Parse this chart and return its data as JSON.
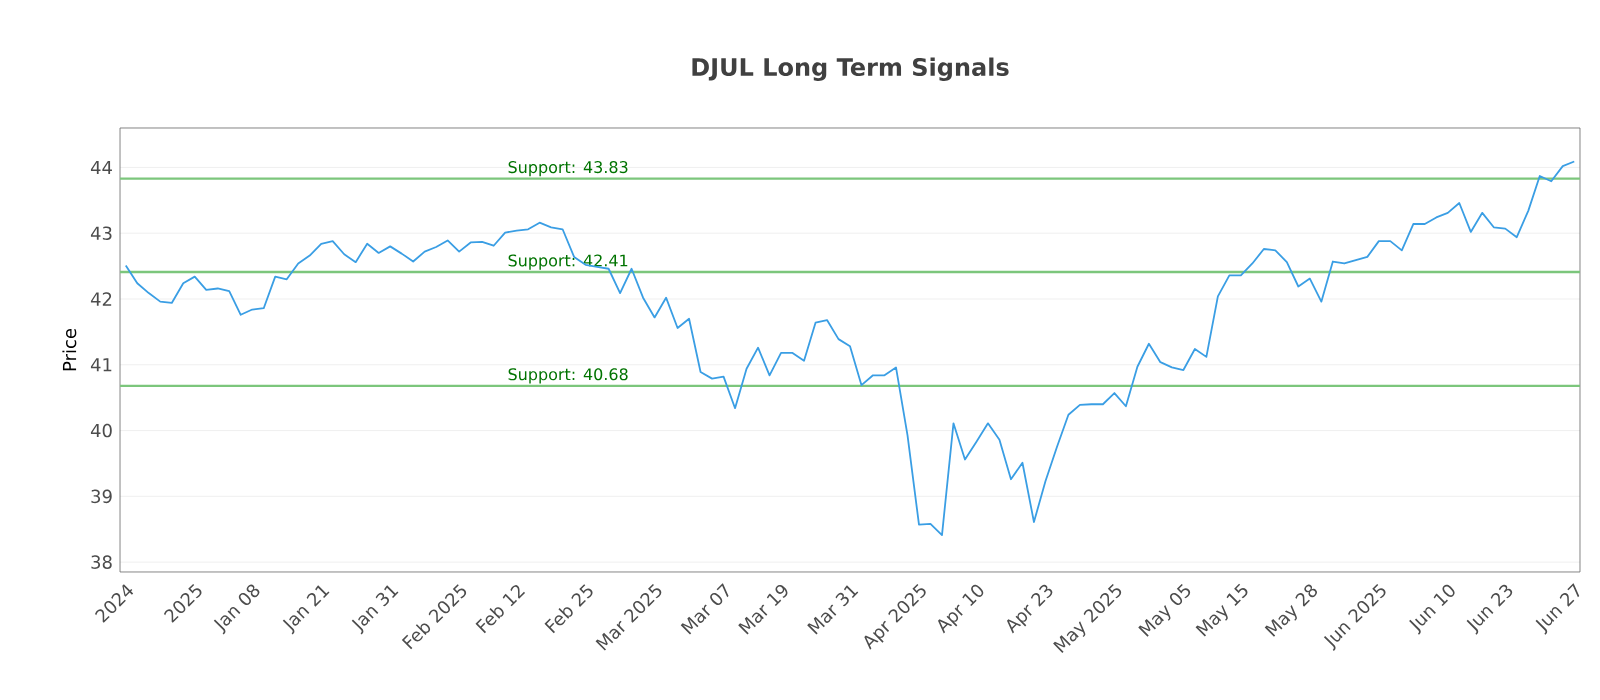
{
  "chart_data": {
    "type": "line",
    "title": "DJUL Long Term Signals",
    "ylabel": "Price",
    "categories": [
      "2024",
      null,
      null,
      null,
      null,
      null,
      "2025",
      null,
      null,
      null,
      null,
      "Jan 08",
      null,
      null,
      null,
      null,
      null,
      "Jan 21",
      null,
      null,
      null,
      null,
      null,
      "Jan 31",
      null,
      null,
      null,
      null,
      null,
      "Feb 2025",
      null,
      null,
      null,
      null,
      "Feb 12",
      null,
      null,
      null,
      null,
      null,
      "Feb 25",
      null,
      null,
      null,
      null,
      null,
      "Mar 2025",
      null,
      null,
      null,
      null,
      null,
      "Mar 07",
      null,
      null,
      null,
      null,
      "Mar 19",
      null,
      null,
      null,
      null,
      null,
      "Mar 31",
      null,
      null,
      null,
      null,
      null,
      "Apr 2025",
      null,
      null,
      null,
      null,
      "Apr 10",
      null,
      null,
      null,
      null,
      null,
      "Apr 23",
      null,
      null,
      null,
      null,
      null,
      "May 2025",
      null,
      null,
      null,
      null,
      null,
      "May 05",
      null,
      null,
      null,
      null,
      "May 15",
      null,
      null,
      null,
      null,
      null,
      "May 28",
      null,
      null,
      null,
      null,
      null,
      "Jun 2025",
      null,
      null,
      null,
      null,
      null,
      "Jun 10",
      null,
      null,
      null,
      null,
      "Jun 23",
      null,
      null,
      null,
      null,
      null,
      "Jun 27"
    ],
    "series": [
      {
        "color": "#3a9ee4",
        "values": [
          42.51,
          42.24,
          42.09,
          41.96,
          41.94,
          42.24,
          42.34,
          42.14,
          42.16,
          42.12,
          41.76,
          41.84,
          41.86,
          42.34,
          42.3,
          42.54,
          42.66,
          42.84,
          42.88,
          42.68,
          42.56,
          42.84,
          42.7,
          42.8,
          42.69,
          42.57,
          42.72,
          42.79,
          42.89,
          42.72,
          42.86,
          42.87,
          42.81,
          43.01,
          43.04,
          43.06,
          43.16,
          43.09,
          43.06,
          42.64,
          42.52,
          42.49,
          42.46,
          42.09,
          42.46,
          42.02,
          41.72,
          42.02,
          41.56,
          41.7,
          40.89,
          40.79,
          40.82,
          40.34,
          40.94,
          41.26,
          40.84,
          41.18,
          41.18,
          41.06,
          41.64,
          41.68,
          41.39,
          41.28,
          40.69,
          40.84,
          40.84,
          40.96,
          39.93,
          38.57,
          38.58,
          38.41,
          40.11,
          39.56,
          39.83,
          40.11,
          39.86,
          39.26,
          39.51,
          38.61,
          39.23,
          39.75,
          40.24,
          40.39,
          40.4,
          40.4,
          40.57,
          40.37,
          40.97,
          41.32,
          41.04,
          40.96,
          40.92,
          41.24,
          41.12,
          42.04,
          42.36,
          42.36,
          42.54,
          42.76,
          42.74,
          42.56,
          42.19,
          42.31,
          41.96,
          42.57,
          42.54,
          42.59,
          42.64,
          42.88,
          42.88,
          42.74,
          43.14,
          43.14,
          43.24,
          43.31,
          43.46,
          43.02,
          43.31,
          43.09,
          43.07,
          42.94,
          43.34,
          43.87,
          43.79,
          44.02,
          44.09
        ]
      }
    ],
    "ylim": [
      37.85,
      44.6
    ],
    "yticks": [
      38,
      39,
      40,
      41,
      42,
      43,
      44
    ],
    "grid": "y",
    "marker": "none",
    "line_style": "solid",
    "ref_lines": [
      {
        "axis": "y",
        "value": 43.83,
        "label": "Support: 43.83",
        "color": "#7cc67c",
        "line_style": "solid"
      },
      {
        "axis": "y",
        "value": 42.41,
        "label": "Support: 42.41",
        "color": "#7cc67c",
        "line_style": "solid"
      },
      {
        "axis": "y",
        "value": 40.68,
        "label": "Support: 40.68",
        "color": "#7cc67c",
        "line_style": "solid"
      }
    ]
  }
}
